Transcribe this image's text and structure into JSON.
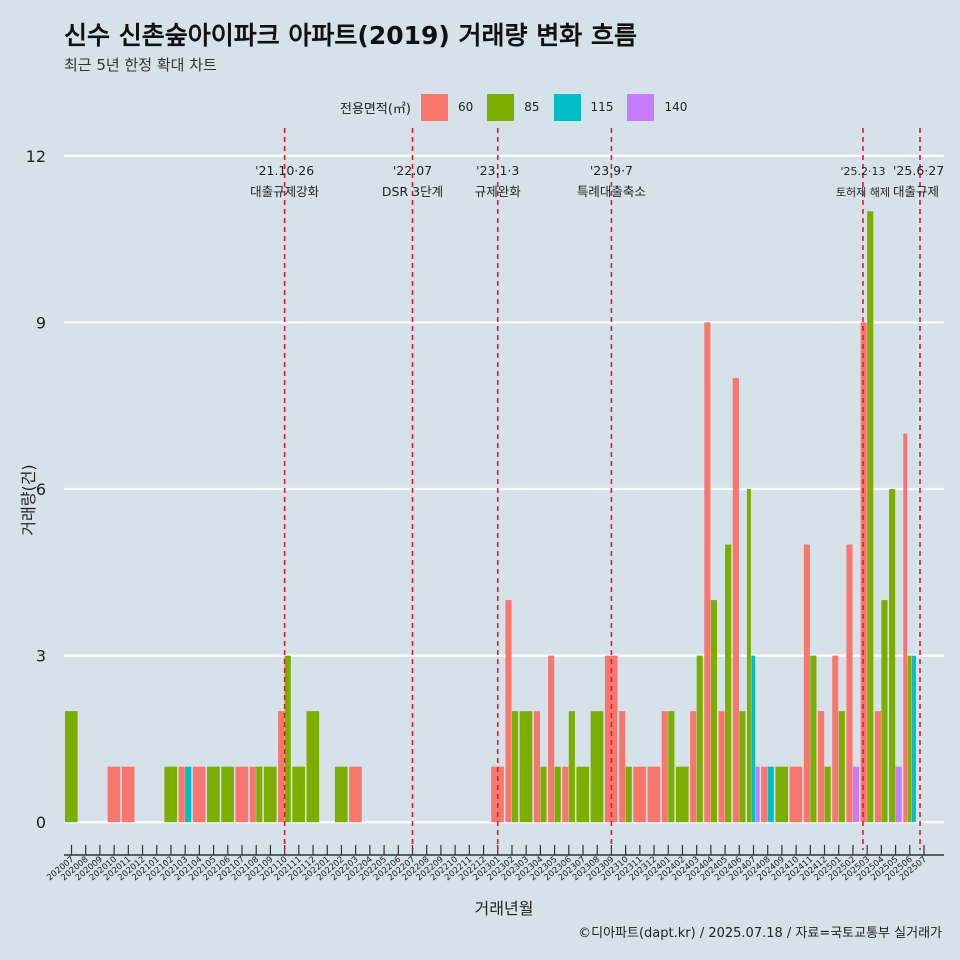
{
  "title": "신수 신촌숲아이파크 아파트(2019) 거래량 변화 흐름",
  "subtitle": "최근 5년 한정 확대 차트",
  "caption": "©디아파트(dapt.kr) / 2025.07.18 / 자료=국토교통부 실거래가",
  "legend": {
    "title": "전용면적(㎡)",
    "items": [
      {
        "label": "60",
        "color": "#f8766d"
      },
      {
        "label": "85",
        "color": "#7cae00"
      },
      {
        "label": "115",
        "color": "#00bfc4"
      },
      {
        "label": "140",
        "color": "#c77cff"
      }
    ]
  },
  "chart_data": {
    "type": "bar",
    "xlabel": "거래년월",
    "ylabel": "거래량(건)",
    "ylim": [
      -0.5,
      12.5
    ],
    "yticks": [
      0,
      3,
      6,
      9,
      12
    ],
    "grid": true,
    "legend_position": "top",
    "categories": [
      "202007",
      "202008",
      "202009",
      "202010",
      "202011",
      "202012",
      "202101",
      "202102",
      "202103",
      "202104",
      "202105",
      "202106",
      "202107",
      "202108",
      "202109",
      "202110",
      "202111",
      "202112",
      "202201",
      "202202",
      "202203",
      "202204",
      "202205",
      "202206",
      "202207",
      "202208",
      "202209",
      "202210",
      "202211",
      "202212",
      "202301",
      "202302",
      "202303",
      "202304",
      "202305",
      "202306",
      "202307",
      "202308",
      "202309",
      "202310",
      "202311",
      "202312",
      "202401",
      "202402",
      "202403",
      "202404",
      "202405",
      "202406",
      "202407",
      "202408",
      "202409",
      "202410",
      "202411",
      "202412",
      "202501",
      "202502",
      "202503",
      "202504",
      "202505",
      "202506",
      "202507"
    ],
    "series": [
      {
        "name": "60",
        "color": "#f8766d",
        "values": [
          0,
          0,
          0,
          1,
          1,
          0,
          0,
          0,
          1,
          1,
          0,
          0,
          1,
          1,
          0,
          2,
          0,
          0,
          0,
          0,
          1,
          0,
          0,
          0,
          0,
          0,
          0,
          0,
          0,
          0,
          1,
          4,
          0,
          2,
          3,
          1,
          0,
          0,
          3,
          2,
          1,
          1,
          2,
          0,
          2,
          9,
          2,
          8,
          0,
          1,
          0,
          1,
          5,
          2,
          3,
          5,
          9,
          2,
          0,
          7,
          0
        ]
      },
      {
        "name": "85",
        "color": "#7cae00",
        "values": [
          2,
          0,
          0,
          0,
          0,
          0,
          0,
          1,
          0,
          0,
          1,
          1,
          0,
          1,
          1,
          3,
          1,
          2,
          0,
          1,
          0,
          0,
          0,
          0,
          0,
          0,
          0,
          0,
          0,
          0,
          0,
          2,
          2,
          1,
          1,
          2,
          1,
          2,
          0,
          1,
          0,
          0,
          2,
          1,
          3,
          4,
          5,
          2,
          6,
          0,
          1,
          0,
          3,
          1,
          2,
          0,
          11,
          4,
          6,
          3,
          0
        ]
      },
      {
        "name": "115",
        "color": "#00bfc4",
        "values": [
          0,
          0,
          0,
          0,
          0,
          0,
          0,
          0,
          1,
          0,
          0,
          0,
          0,
          0,
          0,
          0,
          0,
          0,
          0,
          0,
          0,
          0,
          0,
          0,
          0,
          0,
          0,
          0,
          0,
          0,
          0,
          0,
          0,
          0,
          0,
          0,
          0,
          0,
          0,
          0,
          0,
          0,
          0,
          0,
          0,
          0,
          0,
          0,
          3,
          1,
          0,
          0,
          0,
          0,
          0,
          0,
          0,
          0,
          0,
          3,
          0
        ]
      },
      {
        "name": "140",
        "color": "#c77cff",
        "values": [
          0,
          0,
          0,
          0,
          0,
          0,
          0,
          0,
          0,
          0,
          0,
          0,
          0,
          0,
          0,
          0,
          0,
          0,
          0,
          0,
          0,
          0,
          0,
          0,
          0,
          0,
          0,
          0,
          0,
          0,
          0,
          0,
          0,
          0,
          0,
          0,
          0,
          0,
          0,
          0,
          0,
          0,
          0,
          0,
          0,
          0,
          0,
          0,
          1,
          0,
          0,
          0,
          0,
          0,
          0,
          1,
          0,
          0,
          1,
          0,
          0
        ]
      }
    ],
    "annotations": [
      {
        "x": "202110",
        "date": "'21.10·26",
        "label": "대출규제강화"
      },
      {
        "x": "202207",
        "date": "'22.07",
        "label": "DSR 3단계"
      },
      {
        "x": "202301",
        "date": "'23.1·3",
        "label": "규제완화"
      },
      {
        "x": "202309",
        "date": "'23.9·7",
        "label": "특례대출축소"
      },
      {
        "x": "202502",
        "date": "'25.2·13",
        "label": "토허제 해제"
      },
      {
        "x": "202506",
        "date": "'25.6·27",
        "label": "대출규제"
      }
    ]
  }
}
